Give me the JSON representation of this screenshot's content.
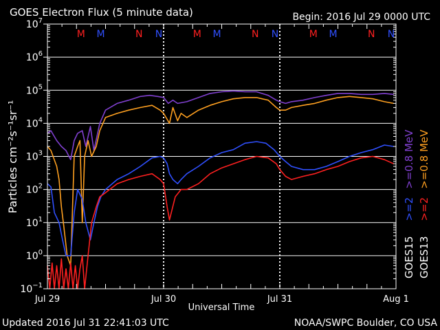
{
  "chart_data": {
    "type": "line",
    "title": "GOES Electron Flux (5 minute data)",
    "begin": "Begin: 2016 Jul 29 0000 UTC",
    "xlabel": "Universal Time",
    "ylabel": "Particles cm⁻²s⁻¹sr⁻¹",
    "y_scale": "log",
    "ylim": [
      0.1,
      10000000
    ],
    "xlim_days": [
      0,
      3
    ],
    "x_ticks": [
      {
        "value": 0,
        "label": "Jul 29"
      },
      {
        "value": 1,
        "label": "Jul 30"
      },
      {
        "value": 2,
        "label": "Jul 31"
      },
      {
        "value": 3,
        "label": "Aug 1"
      }
    ],
    "y_ticks": [
      {
        "exp": -1,
        "label": "10",
        "sup": "−1"
      },
      {
        "exp": 0,
        "label": "10",
        "sup": "0"
      },
      {
        "exp": 1,
        "label": "10",
        "sup": "1"
      },
      {
        "exp": 2,
        "label": "10",
        "sup": "2"
      },
      {
        "exp": 3,
        "label": "10",
        "sup": "3"
      },
      {
        "exp": 4,
        "label": "10",
        "sup": "4"
      },
      {
        "exp": 5,
        "label": "10",
        "sup": "5"
      },
      {
        "exp": 6,
        "label": "10",
        "sup": "6"
      },
      {
        "exp": 7,
        "label": "10",
        "sup": "7"
      }
    ],
    "threshold": {
      "value": 1000,
      "style": "dashed"
    },
    "grid": true,
    "markers": [
      {
        "day": 0.33,
        "label": "M",
        "color": "#ff2020"
      },
      {
        "day": 0.5,
        "label": "M",
        "color": "#3050ff"
      },
      {
        "day": 0.83,
        "label": "N",
        "color": "#ff2020"
      },
      {
        "day": 1.0,
        "label": "N",
        "color": "#3050ff"
      },
      {
        "day": 1.33,
        "label": "M",
        "color": "#ff2020"
      },
      {
        "day": 1.5,
        "label": "M",
        "color": "#3050ff"
      },
      {
        "day": 1.83,
        "label": "N",
        "color": "#ff2020"
      },
      {
        "day": 2.0,
        "label": "N",
        "color": "#3050ff"
      },
      {
        "day": 2.33,
        "label": "M",
        "color": "#ff2020"
      },
      {
        "day": 2.5,
        "label": "M",
        "color": "#3050ff"
      },
      {
        "day": 2.83,
        "label": "N",
        "color": "#ff2020"
      },
      {
        "day": 3.0,
        "label": "N",
        "color": "#3050ff"
      }
    ],
    "legend": {
      "placement": "right",
      "groups": [
        {
          "sat": "GOES15",
          "items": [
            {
              "label": ">=2",
              "color": "#3050ff"
            },
            {
              "label": ">=0.8 MeV",
              "color": "#8040d0"
            }
          ]
        },
        {
          "sat": "GOES13",
          "items": [
            {
              "label": ">=2",
              "color": "#ff2020"
            },
            {
              "label": ">=0.8 MeV",
              "color": "#ffa020"
            }
          ]
        }
      ]
    },
    "series": [
      {
        "name": "GOES15 >=0.8 MeV",
        "color": "#8040d0",
        "x": [
          0,
          0.03,
          0.08,
          0.12,
          0.16,
          0.2,
          0.23,
          0.26,
          0.3,
          0.33,
          0.37,
          0.4,
          0.45,
          0.5,
          0.6,
          0.7,
          0.8,
          0.88,
          0.95,
          1.0,
          1.04,
          1.08,
          1.12,
          1.2,
          1.3,
          1.4,
          1.5,
          1.6,
          1.7,
          1.8,
          1.9,
          1.97,
          2.0,
          2.05,
          2.1,
          2.2,
          2.3,
          2.4,
          2.5,
          2.6,
          2.7,
          2.8,
          2.9,
          2.98
        ],
        "y": [
          5000,
          6000,
          3000,
          2000,
          1500,
          800,
          3000,
          5000,
          6000,
          2000,
          8000,
          1500,
          10000,
          25000,
          40000,
          50000,
          65000,
          70000,
          65000,
          60000,
          40000,
          50000,
          40000,
          45000,
          60000,
          80000,
          90000,
          95000,
          90000,
          90000,
          70000,
          50000,
          45000,
          40000,
          45000,
          50000,
          60000,
          70000,
          80000,
          80000,
          75000,
          75000,
          80000,
          75000
        ]
      },
      {
        "name": "GOES13 >=0.8 MeV",
        "color": "#ffa020",
        "x": [
          0,
          0.03,
          0.08,
          0.1,
          0.12,
          0.14,
          0.17,
          0.2,
          0.23,
          0.26,
          0.28,
          0.3,
          0.32,
          0.35,
          0.38,
          0.42,
          0.45,
          0.5,
          0.6,
          0.7,
          0.8,
          0.9,
          0.97,
          1.0,
          1.05,
          1.08,
          1.12,
          1.15,
          1.2,
          1.3,
          1.4,
          1.5,
          1.6,
          1.7,
          1.8,
          1.9,
          1.97,
          2.0,
          2.05,
          2.1,
          2.2,
          2.3,
          2.4,
          2.5,
          2.6,
          2.7,
          2.8,
          2.9,
          2.98
        ],
        "y": [
          2000,
          1500,
          500,
          200,
          30,
          8,
          1,
          0.5,
          1000,
          2000,
          3000,
          10,
          1000,
          3000,
          1000,
          2000,
          6000,
          15000,
          20000,
          25000,
          30000,
          35000,
          25000,
          20000,
          10000,
          30000,
          12000,
          20000,
          15000,
          25000,
          35000,
          45000,
          55000,
          60000,
          60000,
          50000,
          30000,
          25000,
          25000,
          30000,
          35000,
          40000,
          50000,
          60000,
          65000,
          60000,
          55000,
          45000,
          40000
        ]
      },
      {
        "name": "GOES15 >=2",
        "color": "#3050ff",
        "x": [
          0,
          0.03,
          0.06,
          0.1,
          0.13,
          0.16,
          0.2,
          0.23,
          0.26,
          0.3,
          0.33,
          0.37,
          0.4,
          0.43,
          0.46,
          0.5,
          0.6,
          0.7,
          0.8,
          0.9,
          0.97,
          1.0,
          1.03,
          1.05,
          1.08,
          1.12,
          1.15,
          1.2,
          1.3,
          1.4,
          1.5,
          1.6,
          1.7,
          1.8,
          1.88,
          1.95,
          2.0,
          2.05,
          2.1,
          2.2,
          2.3,
          2.4,
          2.5,
          2.6,
          2.7,
          2.8,
          2.9,
          2.98
        ],
        "y": [
          150,
          120,
          20,
          10,
          3,
          1,
          1,
          20,
          100,
          50,
          10,
          3,
          10,
          30,
          60,
          100,
          200,
          300,
          500,
          900,
          1000,
          900,
          600,
          300,
          200,
          150,
          200,
          300,
          500,
          900,
          1300,
          1600,
          2500,
          2800,
          2500,
          1600,
          1000,
          700,
          500,
          400,
          400,
          500,
          700,
          1000,
          1300,
          1600,
          2200,
          2000
        ]
      },
      {
        "name": "GOES13 >=2",
        "color": "#ff2020",
        "x": [
          0,
          0.02,
          0.04,
          0.06,
          0.08,
          0.1,
          0.12,
          0.14,
          0.16,
          0.18,
          0.2,
          0.22,
          0.24,
          0.26,
          0.28,
          0.3,
          0.32,
          0.35,
          0.38,
          0.42,
          0.45,
          0.5,
          0.6,
          0.7,
          0.8,
          0.9,
          0.97,
          1.0,
          1.03,
          1.05,
          1.1,
          1.15,
          1.2,
          1.3,
          1.4,
          1.5,
          1.6,
          1.7,
          1.8,
          1.9,
          1.97,
          2.0,
          2.05,
          2.1,
          2.2,
          2.3,
          2.4,
          2.5,
          2.6,
          2.7,
          2.8,
          2.9,
          2.98
        ],
        "y": [
          0.5,
          0.1,
          0.6,
          0.1,
          0.5,
          0.1,
          0.8,
          0.1,
          0.4,
          0.1,
          0.6,
          0.1,
          0.5,
          0.1,
          0.4,
          1,
          0.1,
          1,
          10,
          30,
          60,
          80,
          150,
          200,
          250,
          300,
          200,
          150,
          30,
          12,
          60,
          100,
          100,
          150,
          300,
          450,
          600,
          800,
          1000,
          900,
          600,
          400,
          250,
          200,
          250,
          300,
          400,
          500,
          700,
          900,
          1000,
          800,
          600
        ]
      }
    ]
  },
  "footer": {
    "updated": "Updated 2016 Jul 31 22:41:03 UTC",
    "credit": "NOAA/SWPC Boulder, CO USA"
  }
}
